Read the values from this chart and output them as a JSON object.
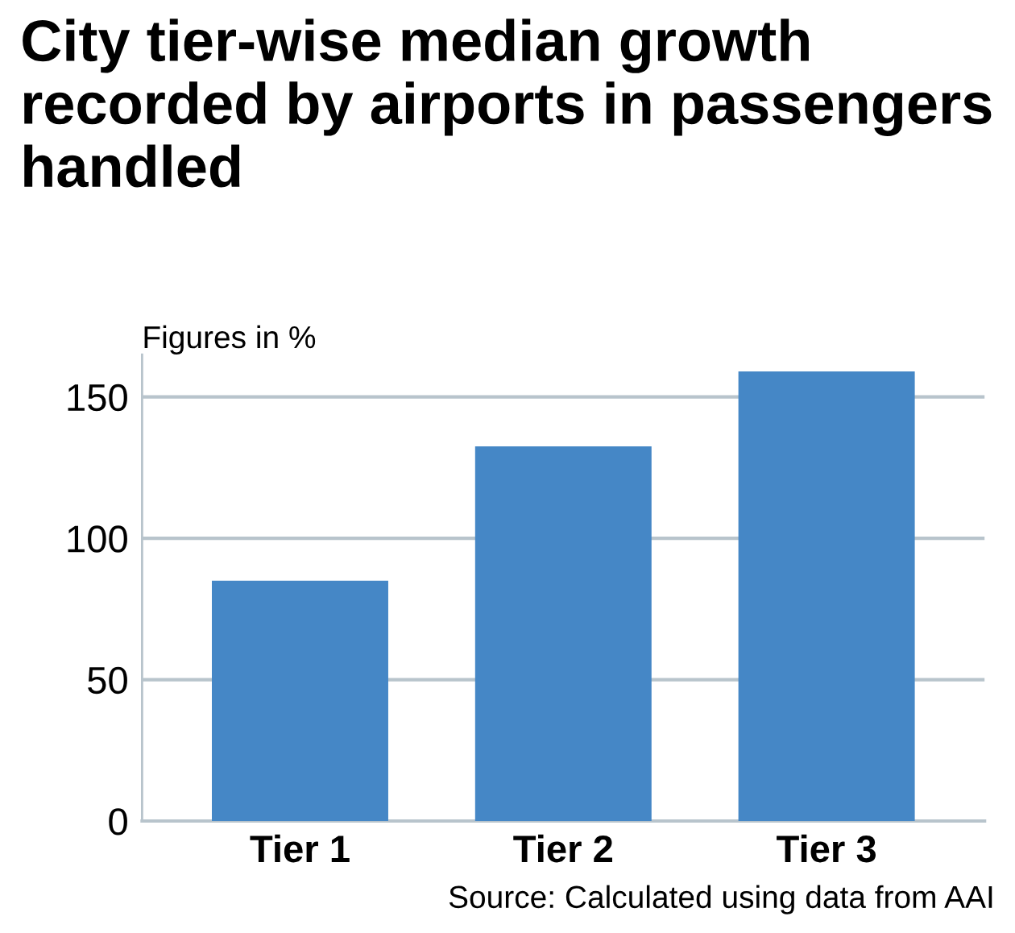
{
  "chart_data": {
    "type": "bar",
    "title": "City tier-wise median growth recorded by airports in passengers handled",
    "ylabel": "Figures in %",
    "categories": [
      "Tier 1",
      "Tier 2",
      "Tier 3"
    ],
    "values": [
      85,
      132.5,
      159
    ],
    "color": "#4587c6",
    "ylim": [
      0,
      165
    ],
    "yticks": [
      0,
      50,
      100,
      150
    ],
    "grid": "y",
    "annotations": [
      "Source: Calculated using data from AAI"
    ]
  }
}
